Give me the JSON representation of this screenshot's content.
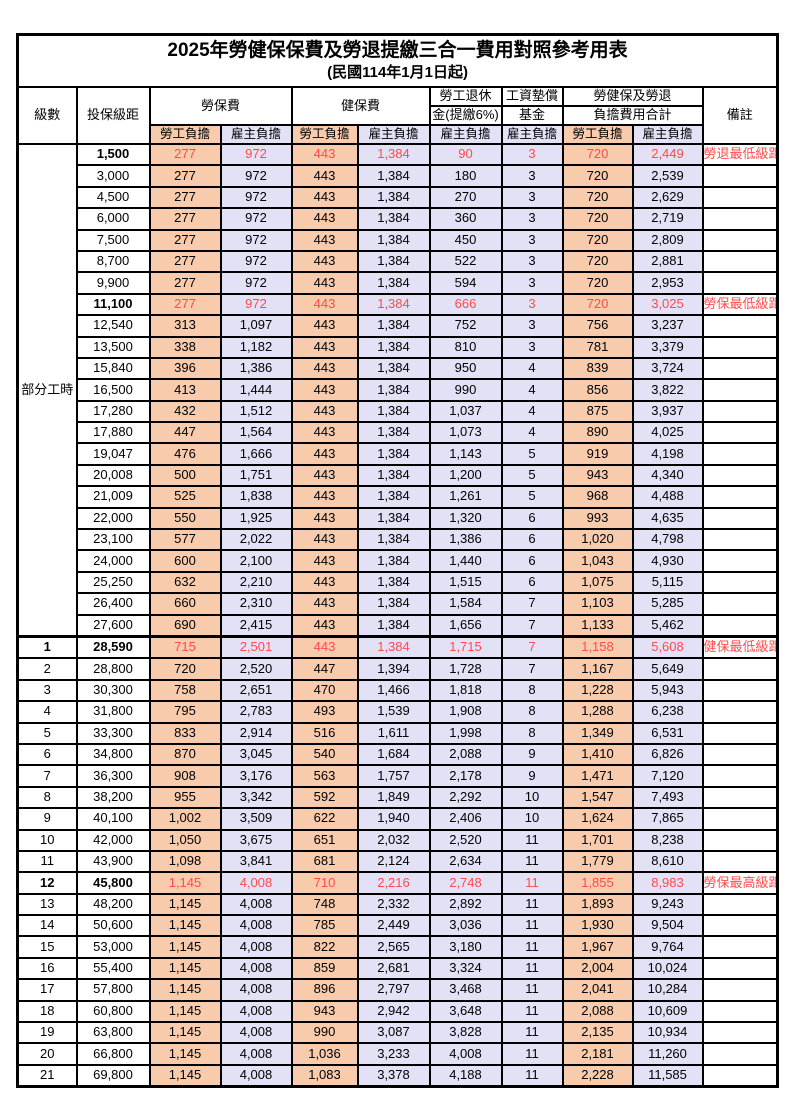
{
  "title": "2025年勞健保保費及勞退提繳三合一費用對照參考用表",
  "subtitle": "(民國114年1月1日起)",
  "colors": {
    "employee_burden_bg": "#F8CBAD",
    "employer_burden_bg": "#E2E1F6",
    "highlight_text": "#FF4B4B",
    "grid": "#000000"
  },
  "header": {
    "level": "級數",
    "bracket": "投保級距",
    "labor_insurance": "勞保費",
    "health_insurance": "健保費",
    "pension_line1": "勞工退休",
    "pension_line2": "金(提繳6%)",
    "wage_fund_line1": "工資墊償",
    "wage_fund_line2": "基金",
    "total_line1": "勞健保及勞退",
    "total_line2": "負擔費用合計",
    "remark": "備註",
    "employee_burden": "勞工負擔",
    "employer_burden": "雇主負擔"
  },
  "part_time_label": "部分工時",
  "rows": [
    {
      "level": "",
      "bracket": "1,500",
      "values": [
        "277",
        "972",
        "443",
        "1,384",
        "90",
        "3",
        "720",
        "2,449"
      ],
      "remark": "勞退最低級距",
      "highlight": true
    },
    {
      "level": "",
      "bracket": "3,000",
      "values": [
        "277",
        "972",
        "443",
        "1,384",
        "180",
        "3",
        "720",
        "2,539"
      ],
      "remark": "",
      "highlight": false
    },
    {
      "level": "",
      "bracket": "4,500",
      "values": [
        "277",
        "972",
        "443",
        "1,384",
        "270",
        "3",
        "720",
        "2,629"
      ],
      "remark": "",
      "highlight": false
    },
    {
      "level": "",
      "bracket": "6,000",
      "values": [
        "277",
        "972",
        "443",
        "1,384",
        "360",
        "3",
        "720",
        "2,719"
      ],
      "remark": "",
      "highlight": false
    },
    {
      "level": "",
      "bracket": "7,500",
      "values": [
        "277",
        "972",
        "443",
        "1,384",
        "450",
        "3",
        "720",
        "2,809"
      ],
      "remark": "",
      "highlight": false
    },
    {
      "level": "",
      "bracket": "8,700",
      "values": [
        "277",
        "972",
        "443",
        "1,384",
        "522",
        "3",
        "720",
        "2,881"
      ],
      "remark": "",
      "highlight": false
    },
    {
      "level": "",
      "bracket": "9,900",
      "values": [
        "277",
        "972",
        "443",
        "1,384",
        "594",
        "3",
        "720",
        "2,953"
      ],
      "remark": "",
      "highlight": false
    },
    {
      "level": "",
      "bracket": "11,100",
      "values": [
        "277",
        "972",
        "443",
        "1,384",
        "666",
        "3",
        "720",
        "3,025"
      ],
      "remark": "勞保最低級距",
      "highlight": true
    },
    {
      "level": "",
      "bracket": "12,540",
      "values": [
        "313",
        "1,097",
        "443",
        "1,384",
        "752",
        "3",
        "756",
        "3,237"
      ],
      "remark": "",
      "highlight": false
    },
    {
      "level": "",
      "bracket": "13,500",
      "values": [
        "338",
        "1,182",
        "443",
        "1,384",
        "810",
        "3",
        "781",
        "3,379"
      ],
      "remark": "",
      "highlight": false
    },
    {
      "level": "",
      "bracket": "15,840",
      "values": [
        "396",
        "1,386",
        "443",
        "1,384",
        "950",
        "4",
        "839",
        "3,724"
      ],
      "remark": "",
      "highlight": false
    },
    {
      "level": "",
      "bracket": "16,500",
      "values": [
        "413",
        "1,444",
        "443",
        "1,384",
        "990",
        "4",
        "856",
        "3,822"
      ],
      "remark": "",
      "highlight": false
    },
    {
      "level": "",
      "bracket": "17,280",
      "values": [
        "432",
        "1,512",
        "443",
        "1,384",
        "1,037",
        "4",
        "875",
        "3,937"
      ],
      "remark": "",
      "highlight": false
    },
    {
      "level": "",
      "bracket": "17,880",
      "values": [
        "447",
        "1,564",
        "443",
        "1,384",
        "1,073",
        "4",
        "890",
        "4,025"
      ],
      "remark": "",
      "highlight": false
    },
    {
      "level": "",
      "bracket": "19,047",
      "values": [
        "476",
        "1,666",
        "443",
        "1,384",
        "1,143",
        "5",
        "919",
        "4,198"
      ],
      "remark": "",
      "highlight": false
    },
    {
      "level": "",
      "bracket": "20,008",
      "values": [
        "500",
        "1,751",
        "443",
        "1,384",
        "1,200",
        "5",
        "943",
        "4,340"
      ],
      "remark": "",
      "highlight": false
    },
    {
      "level": "",
      "bracket": "21,009",
      "values": [
        "525",
        "1,838",
        "443",
        "1,384",
        "1,261",
        "5",
        "968",
        "4,488"
      ],
      "remark": "",
      "highlight": false
    },
    {
      "level": "",
      "bracket": "22,000",
      "values": [
        "550",
        "1,925",
        "443",
        "1,384",
        "1,320",
        "6",
        "993",
        "4,635"
      ],
      "remark": "",
      "highlight": false
    },
    {
      "level": "",
      "bracket": "23,100",
      "values": [
        "577",
        "2,022",
        "443",
        "1,384",
        "1,386",
        "6",
        "1,020",
        "4,798"
      ],
      "remark": "",
      "highlight": false
    },
    {
      "level": "",
      "bracket": "24,000",
      "values": [
        "600",
        "2,100",
        "443",
        "1,384",
        "1,440",
        "6",
        "1,043",
        "4,930"
      ],
      "remark": "",
      "highlight": false
    },
    {
      "level": "",
      "bracket": "25,250",
      "values": [
        "632",
        "2,210",
        "443",
        "1,384",
        "1,515",
        "6",
        "1,075",
        "5,115"
      ],
      "remark": "",
      "highlight": false
    },
    {
      "level": "",
      "bracket": "26,400",
      "values": [
        "660",
        "2,310",
        "443",
        "1,384",
        "1,584",
        "7",
        "1,103",
        "5,285"
      ],
      "remark": "",
      "highlight": false
    },
    {
      "level": "",
      "bracket": "27,600",
      "values": [
        "690",
        "2,415",
        "443",
        "1,384",
        "1,656",
        "7",
        "1,133",
        "5,462"
      ],
      "remark": "",
      "highlight": false
    },
    {
      "level": "1",
      "bracket": "28,590",
      "values": [
        "715",
        "2,501",
        "443",
        "1,384",
        "1,715",
        "7",
        "1,158",
        "5,608"
      ],
      "remark": "健保最低級距",
      "highlight": true
    },
    {
      "level": "2",
      "bracket": "28,800",
      "values": [
        "720",
        "2,520",
        "447",
        "1,394",
        "1,728",
        "7",
        "1,167",
        "5,649"
      ],
      "remark": "",
      "highlight": false
    },
    {
      "level": "3",
      "bracket": "30,300",
      "values": [
        "758",
        "2,651",
        "470",
        "1,466",
        "1,818",
        "8",
        "1,228",
        "5,943"
      ],
      "remark": "",
      "highlight": false
    },
    {
      "level": "4",
      "bracket": "31,800",
      "values": [
        "795",
        "2,783",
        "493",
        "1,539",
        "1,908",
        "8",
        "1,288",
        "6,238"
      ],
      "remark": "",
      "highlight": false
    },
    {
      "level": "5",
      "bracket": "33,300",
      "values": [
        "833",
        "2,914",
        "516",
        "1,611",
        "1,998",
        "8",
        "1,349",
        "6,531"
      ],
      "remark": "",
      "highlight": false
    },
    {
      "level": "6",
      "bracket": "34,800",
      "values": [
        "870",
        "3,045",
        "540",
        "1,684",
        "2,088",
        "9",
        "1,410",
        "6,826"
      ],
      "remark": "",
      "highlight": false
    },
    {
      "level": "7",
      "bracket": "36,300",
      "values": [
        "908",
        "3,176",
        "563",
        "1,757",
        "2,178",
        "9",
        "1,471",
        "7,120"
      ],
      "remark": "",
      "highlight": false
    },
    {
      "level": "8",
      "bracket": "38,200",
      "values": [
        "955",
        "3,342",
        "592",
        "1,849",
        "2,292",
        "10",
        "1,547",
        "7,493"
      ],
      "remark": "",
      "highlight": false
    },
    {
      "level": "9",
      "bracket": "40,100",
      "values": [
        "1,002",
        "3,509",
        "622",
        "1,940",
        "2,406",
        "10",
        "1,624",
        "7,865"
      ],
      "remark": "",
      "highlight": false
    },
    {
      "level": "10",
      "bracket": "42,000",
      "values": [
        "1,050",
        "3,675",
        "651",
        "2,032",
        "2,520",
        "11",
        "1,701",
        "8,238"
      ],
      "remark": "",
      "highlight": false
    },
    {
      "level": "11",
      "bracket": "43,900",
      "values": [
        "1,098",
        "3,841",
        "681",
        "2,124",
        "2,634",
        "11",
        "1,779",
        "8,610"
      ],
      "remark": "",
      "highlight": false
    },
    {
      "level": "12",
      "bracket": "45,800",
      "values": [
        "1,145",
        "4,008",
        "710",
        "2,216",
        "2,748",
        "11",
        "1,855",
        "8,983"
      ],
      "remark": "勞保最高級距",
      "highlight": true
    },
    {
      "level": "13",
      "bracket": "48,200",
      "values": [
        "1,145",
        "4,008",
        "748",
        "2,332",
        "2,892",
        "11",
        "1,893",
        "9,243"
      ],
      "remark": "",
      "highlight": false
    },
    {
      "level": "14",
      "bracket": "50,600",
      "values": [
        "1,145",
        "4,008",
        "785",
        "2,449",
        "3,036",
        "11",
        "1,930",
        "9,504"
      ],
      "remark": "",
      "highlight": false
    },
    {
      "level": "15",
      "bracket": "53,000",
      "values": [
        "1,145",
        "4,008",
        "822",
        "2,565",
        "3,180",
        "11",
        "1,967",
        "9,764"
      ],
      "remark": "",
      "highlight": false
    },
    {
      "level": "16",
      "bracket": "55,400",
      "values": [
        "1,145",
        "4,008",
        "859",
        "2,681",
        "3,324",
        "11",
        "2,004",
        "10,024"
      ],
      "remark": "",
      "highlight": false
    },
    {
      "level": "17",
      "bracket": "57,800",
      "values": [
        "1,145",
        "4,008",
        "896",
        "2,797",
        "3,468",
        "11",
        "2,041",
        "10,284"
      ],
      "remark": "",
      "highlight": false
    },
    {
      "level": "18",
      "bracket": "60,800",
      "values": [
        "1,145",
        "4,008",
        "943",
        "2,942",
        "3,648",
        "11",
        "2,088",
        "10,609"
      ],
      "remark": "",
      "highlight": false
    },
    {
      "level": "19",
      "bracket": "63,800",
      "values": [
        "1,145",
        "4,008",
        "990",
        "3,087",
        "3,828",
        "11",
        "2,135",
        "10,934"
      ],
      "remark": "",
      "highlight": false
    },
    {
      "level": "20",
      "bracket": "66,800",
      "values": [
        "1,145",
        "4,008",
        "1,036",
        "3,233",
        "4,008",
        "11",
        "2,181",
        "11,260"
      ],
      "remark": "",
      "highlight": false
    },
    {
      "level": "21",
      "bracket": "69,800",
      "values": [
        "1,145",
        "4,008",
        "1,083",
        "3,378",
        "4,188",
        "11",
        "2,228",
        "11,585"
      ],
      "remark": "",
      "highlight": false
    }
  ]
}
